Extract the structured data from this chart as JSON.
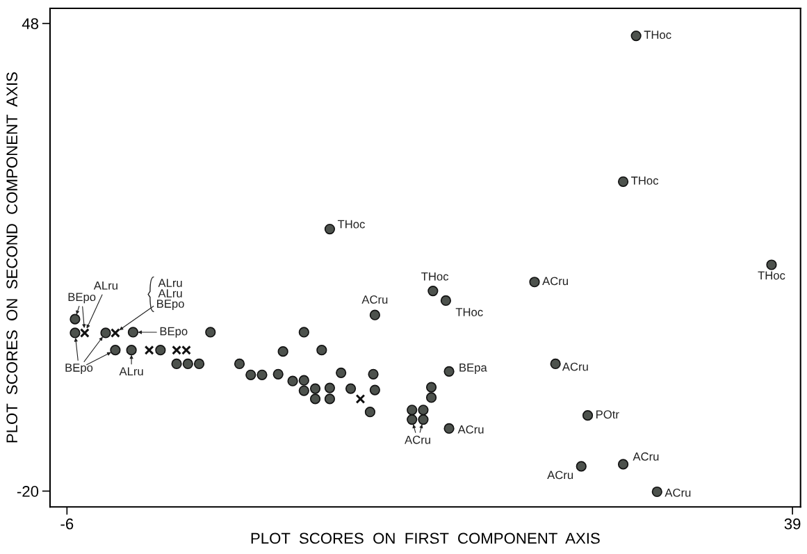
{
  "chart_data": {
    "type": "scatter",
    "xlabel": "PLOT  SCORES  ON  FIRST  COMPONENT  AXIS",
    "ylabel": "PLOT  SCORES  ON  SECOND  COMPONENT  AXIS",
    "xlim": [
      -7.05,
      39.5
    ],
    "ylim": [
      -22.3,
      50.2
    ],
    "xticks": [
      -6,
      39
    ],
    "yticks": [
      -20,
      48
    ],
    "grid": false,
    "legend": false,
    "series": [
      {
        "marker": "circle",
        "color": "#4d524d",
        "x": [
          29.3,
          28.5,
          10.3,
          37.7,
          23.0,
          16.7,
          17.5,
          13.1,
          17.7,
          24.3,
          26.3,
          17.7,
          25.9,
          28.5,
          30.6,
          15.4,
          16.1,
          15.4,
          16.1,
          16.6,
          16.6,
          -5.5,
          -5.5,
          -3.6,
          -1.9,
          2.9,
          -3.0,
          -2.0,
          -0.2,
          0.8,
          1.5,
          2.2,
          4.7,
          5.4,
          6.1,
          7.1,
          7.4,
          8.7,
          9.8,
          8.0,
          8.7,
          8.7,
          9.4,
          9.4,
          10.3,
          10.3,
          11.0,
          11.6,
          13.0,
          13.1,
          12.8
        ],
        "values": [
          46.2,
          25.0,
          18.1,
          12.9,
          10.4,
          9.1,
          7.7,
          5.6,
          -2.6,
          -1.5,
          -9.0,
          -10.9,
          -16.4,
          -16.1,
          -20.1,
          -9.6,
          -9.6,
          -8.2,
          -8.2,
          -6.4,
          -4.9,
          5.0,
          3.0,
          3.0,
          3.1,
          3.1,
          0.5,
          0.5,
          0.5,
          -1.5,
          -1.5,
          -1.5,
          -1.5,
          -3.1,
          -3.1,
          -3.0,
          0.3,
          3.1,
          0.5,
          -4.0,
          -3.9,
          -5.4,
          -5.1,
          -6.6,
          -5.0,
          -6.6,
          -2.8,
          -5.1,
          -3.0,
          -5.3,
          -8.5
        ]
      },
      {
        "marker": "cross",
        "color": "#111111",
        "x": [
          -4.9,
          -3.0,
          -0.9,
          0.8,
          1.4,
          12.2
        ],
        "values": [
          3.0,
          3.0,
          0.5,
          0.5,
          0.5,
          -6.6
        ]
      }
    ],
    "annotations": [
      {
        "text": "THoc",
        "x": 29.3,
        "y": 46.2
      },
      {
        "text": "THoc",
        "x": 28.5,
        "y": 25.0
      },
      {
        "text": "THoc",
        "x": 10.3,
        "y": 18.1
      },
      {
        "text": "THoc",
        "x": 37.7,
        "y": 12.9
      },
      {
        "text": "ACru",
        "x": 23.0,
        "y": 10.4
      },
      {
        "text": "THoc",
        "x": 16.7,
        "y": 9.1
      },
      {
        "text": "THoc",
        "x": 17.5,
        "y": 7.7
      },
      {
        "text": "ACru",
        "x": 13.1,
        "y": 5.6
      },
      {
        "text": "BEpa",
        "x": 17.7,
        "y": -2.6
      },
      {
        "text": "ACru",
        "x": 24.3,
        "y": -1.5
      },
      {
        "text": "POtr",
        "x": 26.3,
        "y": -9.0
      },
      {
        "text": "ACru",
        "x": 17.7,
        "y": -10.9
      },
      {
        "text": "ACru",
        "x": 25.9,
        "y": -16.4
      },
      {
        "text": "ACru",
        "x": 28.5,
        "y": -16.1
      },
      {
        "text": "ACru",
        "x": 30.6,
        "y": -20.1
      },
      {
        "text": "ACru",
        "x": 15.4,
        "y": -9.6
      },
      {
        "text": "BEpo",
        "x": -5.5,
        "y": 5.0
      },
      {
        "text": "ALru",
        "x": -4.9,
        "y": 3.0
      },
      {
        "text": "ALru\nALru\nBEpo",
        "x": -3.0,
        "y": 3.0
      },
      {
        "text": "BEpo",
        "x": -1.9,
        "y": 3.1
      },
      {
        "text": "BEpo",
        "x": -5.5,
        "y": 3.0
      },
      {
        "text": "ALru",
        "x": -2.0,
        "y": 0.5
      }
    ]
  }
}
